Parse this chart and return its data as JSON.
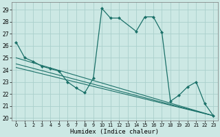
{
  "xlabel": "Humidex (Indice chaleur)",
  "background_color": "#cce8e4",
  "grid_color": "#aacfcc",
  "line_color": "#1a7068",
  "xlim": [
    -0.5,
    23.5
  ],
  "ylim": [
    19.8,
    29.6
  ],
  "yticks": [
    20,
    21,
    22,
    23,
    24,
    25,
    26,
    27,
    28,
    29
  ],
  "xticks": [
    0,
    1,
    2,
    3,
    4,
    5,
    6,
    7,
    8,
    9,
    10,
    11,
    12,
    13,
    14,
    15,
    16,
    17,
    18,
    19,
    20,
    21,
    22,
    23
  ],
  "main_series": {
    "x": [
      0,
      1,
      2,
      3,
      4,
      5,
      6,
      7,
      8,
      9,
      10,
      11,
      12,
      14,
      15,
      16,
      17,
      18,
      19,
      20,
      21,
      22,
      23
    ],
    "y": [
      26.3,
      25.0,
      24.7,
      24.3,
      24.1,
      23.9,
      23.0,
      22.5,
      22.1,
      23.3,
      29.1,
      28.3,
      28.3,
      27.2,
      28.4,
      28.4,
      27.1,
      21.4,
      21.9,
      22.6,
      23.0,
      21.2,
      20.2
    ]
  },
  "trend_lines": [
    {
      "x": [
        0,
        23
      ],
      "y": [
        25.0,
        20.2
      ]
    },
    {
      "x": [
        0,
        23
      ],
      "y": [
        24.5,
        20.2
      ]
    },
    {
      "x": [
        0,
        23
      ],
      "y": [
        24.2,
        20.2
      ]
    }
  ]
}
